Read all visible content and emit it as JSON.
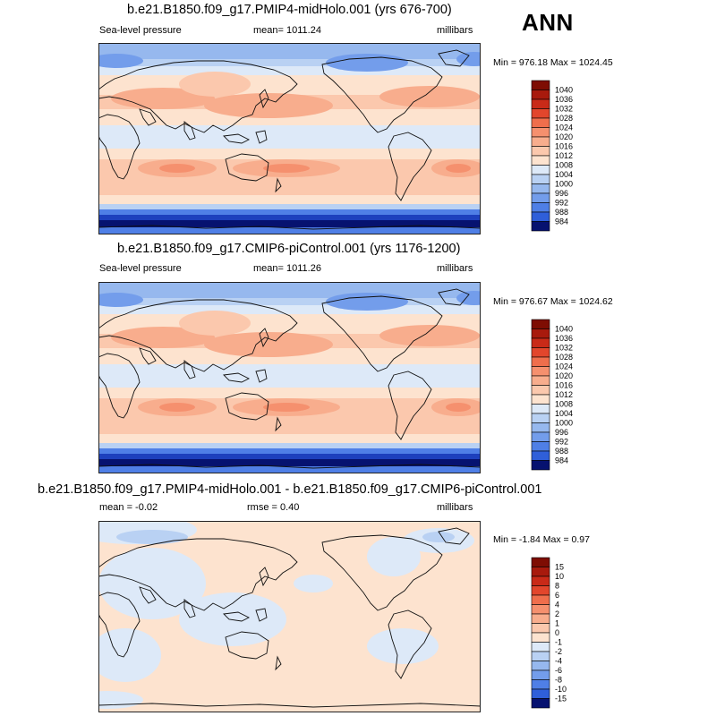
{
  "season": "ANN",
  "palette_pos": [
    "#fde3cf",
    "#fbc8ad",
    "#f8ad8d",
    "#f5906e",
    "#ef6e4c",
    "#e2462c",
    "#c92a18",
    "#a81a0d",
    "#7e0d03"
  ],
  "palette_neg": [
    "#dde9f8",
    "#b9d1f3",
    "#96b8ee",
    "#739deb",
    "#4f7fe6",
    "#2f5fd9",
    "#1d40bd",
    "#0e2696",
    "#061270"
  ],
  "panels": [
    {
      "title": "b.e21.B1850.f09_g17.PMIP4-midHolo.001 (yrs 676-700)",
      "left": "Sea-level pressure",
      "center": "mean= 1011.24",
      "units": "millibars",
      "minmax": "Min = 976.18 Max = 1024.45",
      "colorbar_labels": [
        "1040",
        "1036",
        "1032",
        "1028",
        "1024",
        "1020",
        "1016",
        "1012",
        "1008",
        "1004",
        "1000",
        "996",
        "992",
        "988",
        "984"
      ]
    },
    {
      "title": "b.e21.B1850.f09_g17.CMIP6-piControl.001 (yrs 1176-1200)",
      "left": "Sea-level pressure",
      "center": "mean= 1011.26",
      "units": "millibars",
      "minmax": "Min = 976.67 Max = 1024.62",
      "colorbar_labels": [
        "1040",
        "1036",
        "1032",
        "1028",
        "1024",
        "1020",
        "1016",
        "1012",
        "1008",
        "1004",
        "1000",
        "996",
        "992",
        "988",
        "984"
      ]
    },
    {
      "title": "b.e21.B1850.f09_g17.PMIP4-midHolo.001 - b.e21.B1850.f09_g17.CMIP6-piControl.001",
      "left": "mean =  -0.02",
      "center": "rmse =  0.40",
      "units": "millibars",
      "minmax": "Min =  -1.84 Max =   0.97",
      "colorbar_labels": [
        "15",
        "10",
        "8",
        "6",
        "4",
        "2",
        "1",
        "0",
        "-1",
        "-2",
        "-4",
        "-6",
        "-8",
        "-10",
        "-15"
      ]
    }
  ]
}
